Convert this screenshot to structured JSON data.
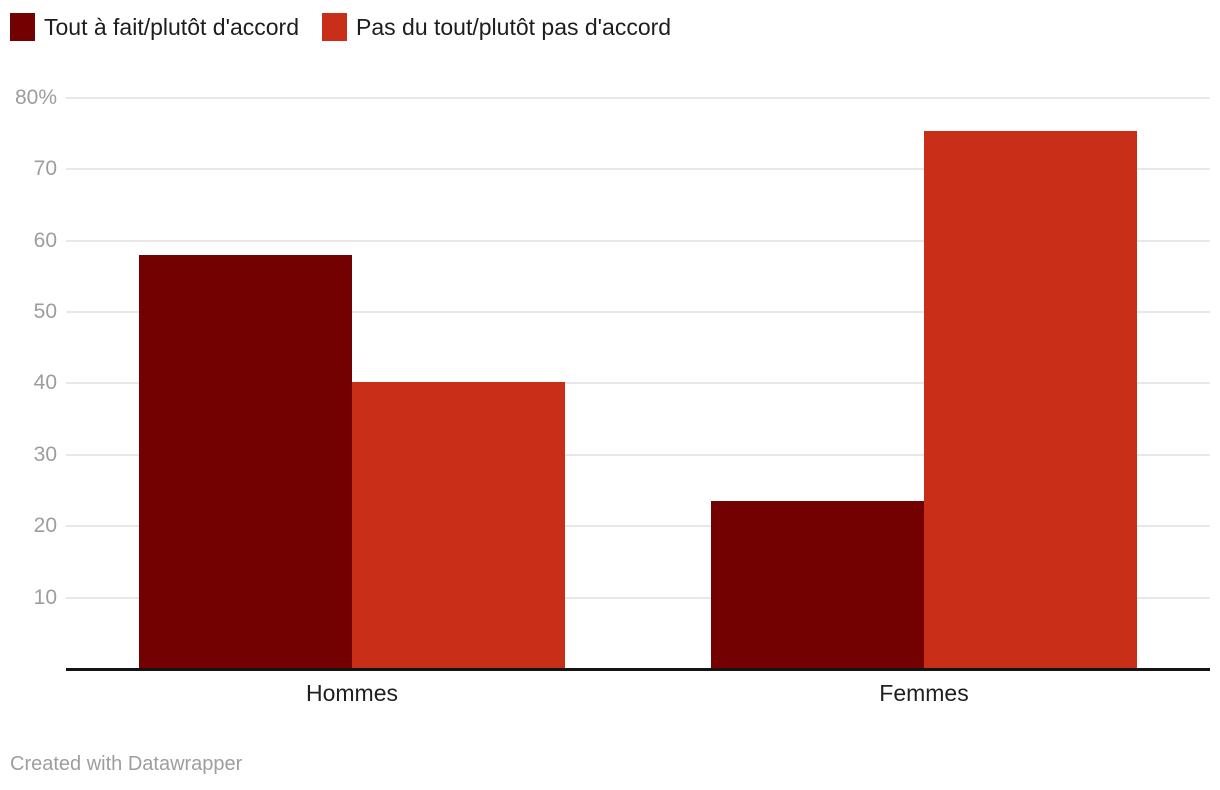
{
  "legend": {
    "items": [
      {
        "label": "Tout à fait/plutôt d'accord",
        "color": "#730101"
      },
      {
        "label": "Pas du tout/plutôt pas d'accord",
        "color": "#c92e19"
      }
    ]
  },
  "footer": {
    "credit": "Created with Datawrapper"
  },
  "colors": {
    "series_dark_red": "#730101",
    "series_red": "#c92e19",
    "gridline": "#e8e8e8",
    "tick_label": "#9d9d9d",
    "category_label": "#1f1f1f",
    "axis_line": "#141414",
    "background": "#ffffff"
  },
  "chart_data": {
    "type": "bar",
    "title": "",
    "xlabel": "",
    "ylabel": "",
    "categories": [
      "Hommes",
      "Femmes"
    ],
    "series": [
      {
        "name": "Tout à fait/plutôt d'accord",
        "color": "#730101",
        "values": [
          58,
          23.5
        ]
      },
      {
        "name": "Pas du tout/plutôt pas d'accord",
        "color": "#c92e19",
        "values": [
          40.2,
          75.3
        ]
      }
    ],
    "ylim": [
      0,
      83.5
    ],
    "yticks": [
      {
        "value": 10,
        "label": "10"
      },
      {
        "value": 20,
        "label": "20"
      },
      {
        "value": 30,
        "label": "30"
      },
      {
        "value": 40,
        "label": "40"
      },
      {
        "value": 50,
        "label": "50"
      },
      {
        "value": 60,
        "label": "60"
      },
      {
        "value": 70,
        "label": "70"
      },
      {
        "value": 80,
        "label": "80%"
      }
    ],
    "grid": true,
    "legend_position": "top-left",
    "value_unit": "%"
  }
}
